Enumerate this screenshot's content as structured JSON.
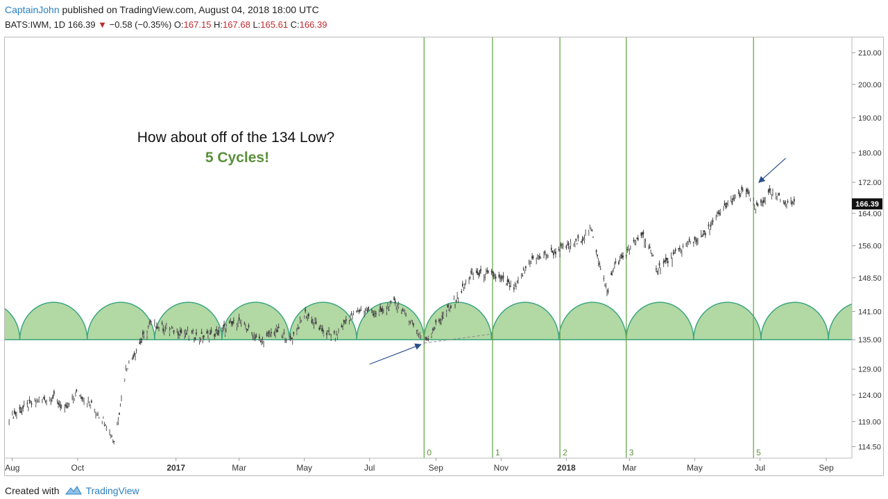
{
  "header": {
    "author": "CaptainJohn",
    "published_text": "published on TradingView.com, August 04, 2018 18:00 UTC",
    "symbol": "BATS:IWM, 1D",
    "last": "166.39",
    "change": "−0.58 (−0.35%)",
    "o_label": "O:",
    "o_value": "167.15",
    "h_label": "H:",
    "h_value": "167.68",
    "l_label": "L:",
    "l_value": "165.61",
    "c_label": "C:",
    "c_value": "166.39"
  },
  "annotations": {
    "question": "How about off of the 134 Low?",
    "cycles": "5 Cycles!"
  },
  "footer": {
    "created_with": "Created with",
    "brand": "TradingView"
  },
  "colors": {
    "down": "#c0282d",
    "accent": "#2b7fc0",
    "cycle_fill": "#b2d8a3",
    "cycle_stroke": "#3aa57f",
    "cycle_line": "#6aa84f",
    "cycles_text": "#5a8f3a",
    "candle": "#555555",
    "arrow": "#2a4f8c"
  },
  "chart_data": {
    "type": "line",
    "title": "",
    "series": [
      {
        "values": [
          [
            "2016-07-29",
            119.8
          ],
          [
            "2016-08-12",
            121.5
          ],
          [
            "2016-08-26",
            123.0
          ],
          [
            "2016-09-09",
            123.5
          ],
          [
            "2016-09-19",
            121.0
          ],
          [
            "2016-10-01",
            124.5
          ],
          [
            "2016-10-14",
            122.0
          ],
          [
            "2016-10-27",
            119.0
          ],
          [
            "2016-11-04",
            115.5
          ],
          [
            "2016-11-09",
            121.0
          ],
          [
            "2016-11-15",
            129.0
          ],
          [
            "2016-11-25",
            133.0
          ],
          [
            "2016-12-09",
            138.5
          ],
          [
            "2016-12-20",
            137.5
          ],
          [
            "2017-01-06",
            136.5
          ],
          [
            "2017-01-25",
            135.5
          ],
          [
            "2017-02-10",
            136.5
          ],
          [
            "2017-02-28",
            139.0
          ],
          [
            "2017-03-10",
            137.0
          ],
          [
            "2017-03-22",
            134.5
          ],
          [
            "2017-04-05",
            137.0
          ],
          [
            "2017-04-18",
            134.8
          ],
          [
            "2017-05-02",
            140.5
          ],
          [
            "2017-05-17",
            137.0
          ],
          [
            "2017-05-30",
            135.5
          ],
          [
            "2017-06-09",
            139.0
          ],
          [
            "2017-06-23",
            141.5
          ],
          [
            "2017-07-10",
            140.5
          ],
          [
            "2017-07-25",
            143.0
          ],
          [
            "2017-08-10",
            138.5
          ],
          [
            "2017-08-21",
            134.5
          ],
          [
            "2017-09-01",
            138.0
          ],
          [
            "2017-09-20",
            143.5
          ],
          [
            "2017-10-05",
            149.5
          ],
          [
            "2017-10-25",
            149.0
          ],
          [
            "2017-11-14",
            146.0
          ],
          [
            "2017-11-28",
            152.5
          ],
          [
            "2017-12-15",
            154.0
          ],
          [
            "2018-01-10",
            156.5
          ],
          [
            "2018-01-24",
            160.0
          ],
          [
            "2018-02-08",
            145.0
          ],
          [
            "2018-02-15",
            151.5
          ],
          [
            "2018-03-01",
            155.0
          ],
          [
            "2018-03-13",
            159.0
          ],
          [
            "2018-03-27",
            150.5
          ],
          [
            "2018-04-09",
            153.0
          ],
          [
            "2018-04-25",
            156.5
          ],
          [
            "2018-05-10",
            158.5
          ],
          [
            "2018-05-30",
            166.0
          ],
          [
            "2018-06-18",
            170.0
          ],
          [
            "2018-06-27",
            165.0
          ],
          [
            "2018-07-10",
            169.0
          ],
          [
            "2018-07-25",
            167.0
          ],
          [
            "2018-08-03",
            166.39
          ]
        ]
      }
    ],
    "price_axis_ticks": [
      "210.00",
      "200.00",
      "190.00",
      "180.00",
      "172.00",
      "164.00",
      "156.00",
      "148.50",
      "141.00",
      "135.00",
      "129.00",
      "124.00",
      "119.00",
      "114.50"
    ],
    "time_axis_ticks": [
      "Aug",
      "Oct",
      "2017",
      "Mar",
      "May",
      "Jul",
      "Sep",
      "Nov",
      "2018",
      "Mar",
      "May",
      "Jul",
      "Sep"
    ],
    "last_price_label": "166.39",
    "cycle_line_labels": [
      "0",
      "1",
      "2",
      "3",
      "5"
    ],
    "cycle_line_dates": [
      "2017-08-21",
      "2017-10-24",
      "2017-12-26",
      "2018-02-26",
      "2018-06-25"
    ],
    "scale": "log",
    "ylim": [
      112.5,
      215
    ],
    "xlim": [
      "2016-07-25",
      "2018-09-25"
    ],
    "cycle_arcs": {
      "base_price": 135.0,
      "peak_price": 143.0,
      "period_days": 63
    },
    "arrows": [
      {
        "from": [
          "2017-07-01",
          130.0
        ],
        "to": [
          "2017-08-18",
          134.0
        ]
      },
      {
        "from": [
          "2018-07-25",
          178.5
        ],
        "to": [
          "2018-06-30",
          172.0
        ]
      }
    ],
    "grid": false,
    "legend": "none"
  }
}
